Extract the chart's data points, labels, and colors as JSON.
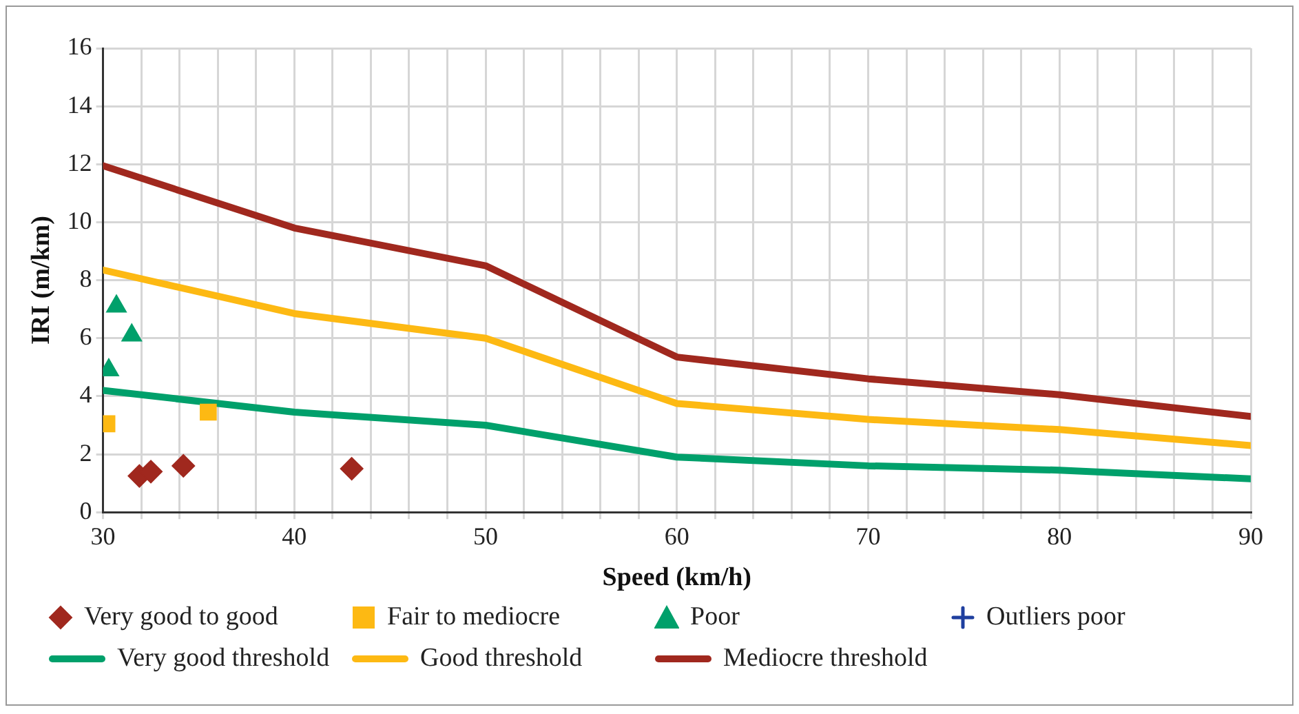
{
  "chart_data": {
    "type": "scatter",
    "xlabel": "Speed (km/h)",
    "ylabel": "IRI (m/km)",
    "xlim": [
      30,
      90
    ],
    "ylim": [
      0,
      16
    ],
    "xticks": [
      30,
      {
        "value": 32,
        "label": null
      },
      {
        "value": 34,
        "label": null
      },
      {
        "value": 36,
        "label": null
      },
      {
        "value": 38,
        "label": null
      },
      40,
      {
        "value": 42,
        "label": null
      },
      {
        "value": 44,
        "label": null
      },
      {
        "value": 46,
        "label": null
      },
      {
        "value": 48,
        "label": null
      },
      50,
      {
        "value": 52,
        "label": null
      },
      {
        "value": 54,
        "label": null
      },
      {
        "value": 56,
        "label": null
      },
      {
        "value": 58,
        "label": null
      },
      60,
      {
        "value": 62,
        "label": null
      },
      {
        "value": 64,
        "label": null
      },
      {
        "value": 66,
        "label": null
      },
      {
        "value": 68,
        "label": null
      },
      70,
      {
        "value": 72,
        "label": null
      },
      {
        "value": 74,
        "label": null
      },
      {
        "value": 76,
        "label": null
      },
      {
        "value": 78,
        "label": null
      },
      80,
      {
        "value": 82,
        "label": null
      },
      {
        "value": 84,
        "label": null
      },
      {
        "value": 86,
        "label": null
      },
      {
        "value": 88,
        "label": null
      },
      90
    ],
    "yticks": [
      0,
      2,
      4,
      6,
      8,
      10,
      12,
      14,
      16
    ],
    "grid": true,
    "legend": "bottom",
    "series": [
      {
        "name": "Very good to good",
        "marker": "diamond",
        "color": "#a0281e",
        "x": [
          31.9,
          32.5,
          34.2,
          43
        ],
        "values": [
          1.25,
          1.4,
          1.6,
          1.5
        ]
      },
      {
        "name": "Fair to mediocre",
        "marker": "square",
        "color": "#fdb913",
        "x": [
          30.2,
          35.5
        ],
        "values": [
          3.05,
          3.45
        ]
      },
      {
        "name": "Poor",
        "marker": "triangle",
        "color": "#00a06b",
        "x": [
          30.3,
          30.7,
          31.5
        ],
        "values": [
          4.9,
          7.1,
          6.1
        ]
      },
      {
        "name": "Outliers poor",
        "marker": "cross",
        "color": "#1f3f9f"
      },
      {
        "name": "Very good threshold",
        "type": "line",
        "marker": "none",
        "color": "#00a06b",
        "x": [
          30,
          40,
          50,
          60,
          70,
          80,
          90
        ],
        "values": [
          4.2,
          3.45,
          3.0,
          1.9,
          1.6,
          1.45,
          1.15
        ]
      },
      {
        "name": "Good threshold",
        "type": "line",
        "marker": "none",
        "color": "#fdb913",
        "x": [
          30,
          40,
          50,
          60,
          70,
          80,
          90
        ],
        "values": [
          8.35,
          6.85,
          6.0,
          3.75,
          3.2,
          2.85,
          2.3
        ]
      },
      {
        "name": "Mediocre threshold",
        "type": "line",
        "marker": "none",
        "color": "#a0281e",
        "x": [
          30,
          40,
          50,
          60,
          70,
          80,
          90
        ],
        "values": [
          11.95,
          9.8,
          8.5,
          5.35,
          4.6,
          4.05,
          3.3
        ]
      }
    ]
  }
}
